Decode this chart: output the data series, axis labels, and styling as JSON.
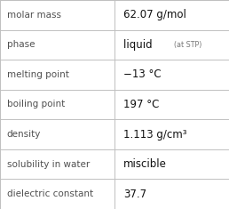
{
  "rows": [
    {
      "label": "molar mass",
      "value": "62.07 g/mol",
      "type": "plain"
    },
    {
      "label": "phase",
      "value": "liquid",
      "value_extra": "(at STP)",
      "type": "phase"
    },
    {
      "label": "melting point",
      "value": "−13 °C",
      "type": "plain"
    },
    {
      "label": "boiling point",
      "value": "197 °C",
      "type": "plain"
    },
    {
      "label": "density",
      "value": "1.113 g/cm³",
      "type": "plain"
    },
    {
      "label": "solubility in water",
      "value": "miscible",
      "type": "plain"
    },
    {
      "label": "dielectric constant",
      "value": "37.7",
      "type": "plain"
    }
  ],
  "col_split": 0.5,
  "background_color": "#ffffff",
  "line_color": "#c0c0c0",
  "label_color": "#505050",
  "value_color": "#111111",
  "extra_color": "#777777",
  "label_fontsize": 7.5,
  "value_fontsize": 8.5,
  "extra_fontsize": 5.8
}
